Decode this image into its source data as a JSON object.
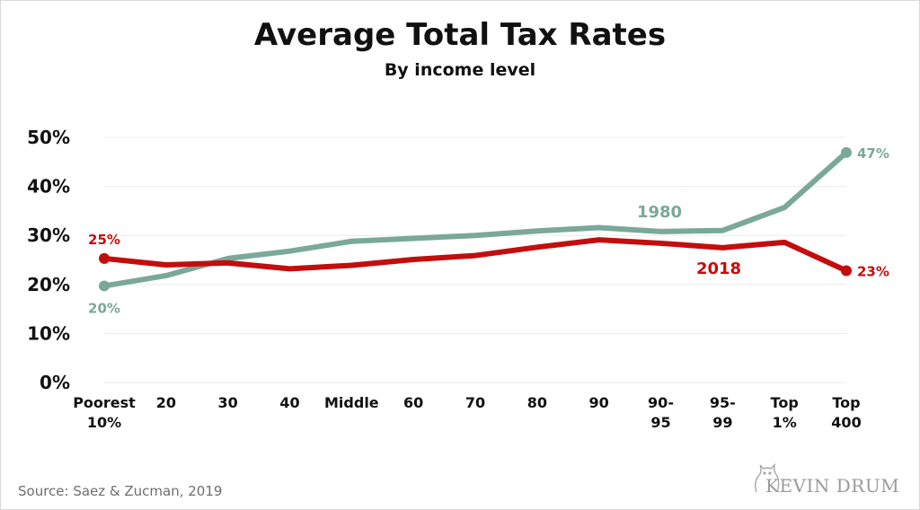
{
  "chart_data": {
    "type": "line",
    "title": "Average Total Tax Rates",
    "subtitle": "By income level",
    "categories": [
      [
        "Poorest",
        "10%"
      ],
      [
        "20"
      ],
      [
        "30"
      ],
      [
        "40"
      ],
      [
        "Middle"
      ],
      [
        "60"
      ],
      [
        "70"
      ],
      [
        "80"
      ],
      [
        "90"
      ],
      [
        "90-",
        "95"
      ],
      [
        "95-",
        "99"
      ],
      [
        "Top",
        "1%"
      ],
      [
        "Top",
        "400"
      ]
    ],
    "yticks": [
      "0%",
      "10%",
      "20%",
      "30%",
      "40%",
      "50%"
    ],
    "ylim": [
      0,
      50
    ],
    "grid": true,
    "series": [
      {
        "name": "1980",
        "color": "#7aa89a",
        "values": [
          19.7,
          21.8,
          25.3,
          26.8,
          28.8,
          29.4,
          30.0,
          30.9,
          31.6,
          30.8,
          31.0,
          35.7,
          46.9
        ],
        "start_label": "20%",
        "end_label": "47%"
      },
      {
        "name": "2018",
        "color": "#c40d0d",
        "values": [
          25.3,
          24.0,
          24.4,
          23.2,
          23.9,
          25.1,
          25.9,
          27.6,
          29.1,
          28.4,
          27.5,
          28.6,
          22.8
        ],
        "start_label": "25%",
        "end_label": "23%"
      }
    ]
  },
  "footer": {
    "source": "Source: Saez & Zucman, 2019",
    "logo": "KEVIN DRUM"
  }
}
